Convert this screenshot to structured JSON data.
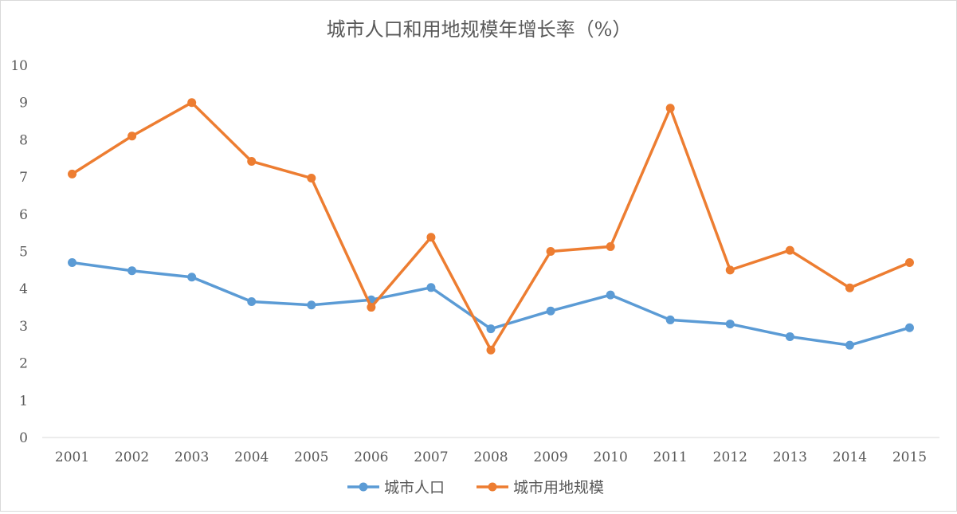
{
  "chart_data": {
    "type": "line",
    "title": "城市人口和用地规模年增长率（%）",
    "xlabel": "",
    "ylabel": "",
    "categories": [
      "2001",
      "2002",
      "2003",
      "2004",
      "2005",
      "2006",
      "2007",
      "2008",
      "2009",
      "2010",
      "2011",
      "2012",
      "2013",
      "2014",
      "2015"
    ],
    "ylim": [
      0,
      10
    ],
    "yticks": [
      "0",
      "1",
      "2",
      "3",
      "4",
      "5",
      "6",
      "7",
      "8",
      "9",
      "10"
    ],
    "grid": false,
    "legend": "bottom",
    "series": [
      {
        "name": "城市人口",
        "color": "#5b9bd5",
        "values": [
          4.7,
          4.48,
          4.31,
          3.65,
          3.56,
          3.7,
          4.03,
          2.92,
          3.4,
          3.83,
          3.16,
          3.05,
          2.71,
          2.48,
          2.95
        ]
      },
      {
        "name": "城市用地规模",
        "color": "#ed7d31",
        "values": [
          7.08,
          8.1,
          9.0,
          7.42,
          6.97,
          3.5,
          5.38,
          2.35,
          5.0,
          5.13,
          8.85,
          4.5,
          5.03,
          4.02,
          4.7
        ]
      }
    ]
  }
}
